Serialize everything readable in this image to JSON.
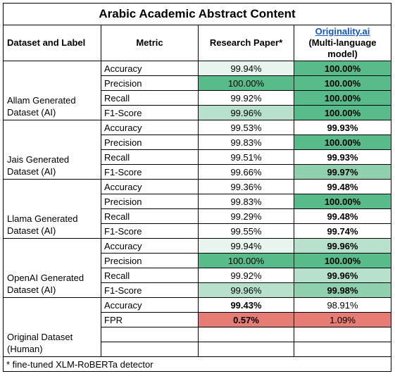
{
  "title": "Arabic Academic Abstract Content",
  "header": {
    "dataset_label": "Dataset and Label",
    "metric": "Metric",
    "research_paper": "Research Paper*",
    "originality_link": "Originality.ai",
    "originality_sub": "(Multi-language model)"
  },
  "groups": [
    {
      "dataset": "Allam Generated Dataset (AI)",
      "rows": [
        {
          "metric": "Accuracy",
          "research": "99.94%",
          "originality": "100.00%"
        },
        {
          "metric": "Precision",
          "research": "100.00%",
          "originality": "100.00%"
        },
        {
          "metric": "Recall",
          "research": "99.92%",
          "originality": "100.00%"
        },
        {
          "metric": "F1-Score",
          "research": "99.96%",
          "originality": "100.00%"
        }
      ]
    },
    {
      "dataset": "Jais Generated Dataset (AI)",
      "rows": [
        {
          "metric": "Accuracy",
          "research": "99.53%",
          "originality": "99.93%"
        },
        {
          "metric": "Precision",
          "research": "99.83%",
          "originality": "100.00%"
        },
        {
          "metric": "Recall",
          "research": "99.51%",
          "originality": "99.93%"
        },
        {
          "metric": "F1-Score",
          "research": "99.66%",
          "originality": "99.97%"
        }
      ]
    },
    {
      "dataset": "Llama Generated Dataset (AI)",
      "rows": [
        {
          "metric": "Accuracy",
          "research": "99.36%",
          "originality": "99.48%"
        },
        {
          "metric": "Precision",
          "research": "99.83%",
          "originality": "100.00%"
        },
        {
          "metric": "Recall",
          "research": "99.29%",
          "originality": "99.48%"
        },
        {
          "metric": "F1-Score",
          "research": "99.55%",
          "originality": "99.74%"
        }
      ]
    },
    {
      "dataset": "OpenAI Generated Dataset (AI)",
      "rows": [
        {
          "metric": "Accuracy",
          "research": "99.94%",
          "originality": "99.96%"
        },
        {
          "metric": "Precision",
          "research": "100.00%",
          "originality": "100.00%"
        },
        {
          "metric": "Recall",
          "research": "99.92%",
          "originality": "99.96%"
        },
        {
          "metric": "F1-Score",
          "research": "99.96%",
          "originality": "99.98%"
        }
      ]
    },
    {
      "dataset": "Original Dataset (Human)",
      "rows": [
        {
          "metric": "Accuracy",
          "research": "99.43%",
          "originality": "98.91%"
        },
        {
          "metric": "FPR",
          "research": "0.57%",
          "originality": "1.09%"
        },
        {
          "metric": "",
          "research": "",
          "originality": ""
        },
        {
          "metric": "",
          "research": "",
          "originality": ""
        }
      ]
    }
  ],
  "cell_colors": {
    "dark_green": "#57bb8a",
    "mid_green": "#8fd1ae",
    "light_green": "#b7e1cd",
    "pale_green": "#e8f5ee",
    "red": "#e67c73"
  },
  "footnote": "* fine-tuned XLM-RoBERTa detector"
}
